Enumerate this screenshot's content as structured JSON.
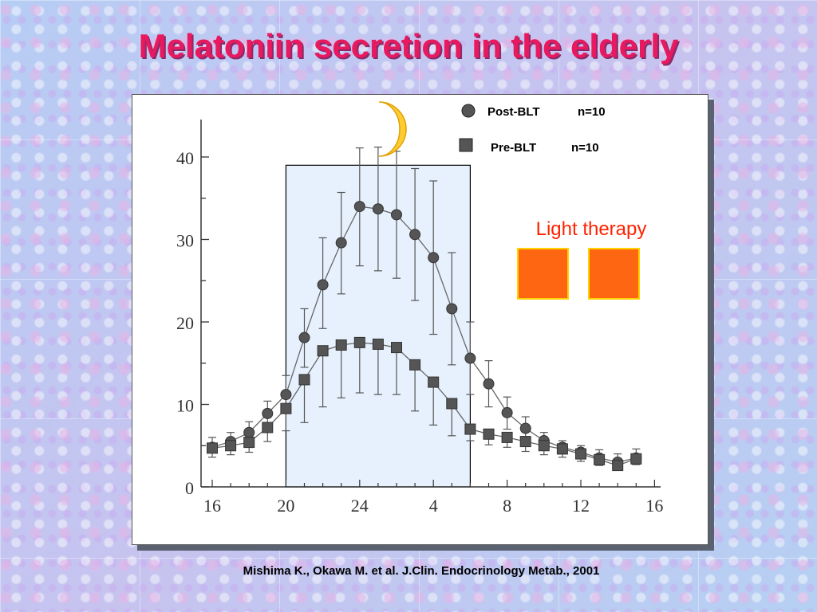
{
  "slide": {
    "title": "Melatoniin secretion in the elderly",
    "citation": "Mishima K., Okawa M. et al. J.Clin. Endocrinology Metab., 2001"
  },
  "chart_data": {
    "type": "line",
    "title": "",
    "xlabel": "",
    "ylabel": "",
    "x_tick_labels": [
      "16",
      "20",
      "24",
      "4",
      "8",
      "12",
      "16"
    ],
    "x_tick_hours": [
      0,
      4,
      8,
      12,
      16,
      20,
      24
    ],
    "y_ticks": [
      0,
      10,
      20,
      30,
      40
    ],
    "ylim": [
      0,
      45
    ],
    "x_range_hours": [
      0,
      24
    ],
    "grid": false,
    "series": [
      {
        "name": "Post-BLT",
        "n_label": "n=10",
        "marker": "circle",
        "x_hours": [
          0,
          1,
          2,
          3,
          4,
          5,
          6,
          7,
          8,
          9,
          10,
          11,
          12,
          13,
          14,
          15,
          16,
          17,
          18,
          19,
          20,
          21,
          22,
          23
        ],
        "values": [
          4.8,
          5.5,
          6.6,
          8.9,
          11.2,
          18.1,
          24.5,
          29.6,
          34.0,
          33.7,
          33.0,
          30.6,
          27.8,
          21.6,
          15.6,
          12.5,
          9.0,
          7.1,
          5.6,
          4.8,
          4.2,
          3.5,
          3.0,
          3.5
        ],
        "error_upper": [
          6.0,
          6.6,
          7.9,
          10.4,
          13.5,
          21.6,
          30.2,
          35.7,
          41.1,
          41.2,
          40.7,
          38.6,
          37.1,
          28.4,
          20.0,
          15.3,
          10.9,
          8.5,
          6.6,
          5.6,
          5.0,
          4.5,
          4.0,
          4.6
        ],
        "error_lower": [
          4.8,
          4.5,
          5.4,
          7.8,
          9.2,
          14.5,
          19.2,
          23.4,
          26.8,
          26.2,
          25.3,
          22.6,
          18.5,
          14.8,
          11.2,
          9.7,
          7.0,
          5.7,
          4.7,
          4.0,
          3.5,
          2.8,
          2.3,
          2.8
        ]
      },
      {
        "name": "Pre-BLT",
        "n_label": "n=10",
        "marker": "square",
        "x_hours": [
          0,
          1,
          2,
          3,
          4,
          5,
          6,
          7,
          8,
          9,
          10,
          11,
          12,
          13,
          14,
          15,
          16,
          17,
          18,
          19,
          20,
          21,
          22,
          23
        ],
        "values": [
          4.7,
          5.0,
          5.4,
          7.2,
          9.5,
          13.0,
          16.5,
          17.2,
          17.5,
          17.3,
          16.9,
          14.8,
          12.7,
          10.1,
          7.0,
          6.4,
          6.0,
          5.5,
          5.0,
          4.6,
          4.0,
          3.3,
          2.6,
          3.4
        ],
        "error_upper": [
          4.7,
          5.0,
          5.4,
          7.2,
          9.5,
          13.0,
          16.5,
          17.2,
          17.5,
          17.3,
          16.9,
          14.8,
          12.7,
          10.1,
          7.0,
          6.4,
          6.0,
          5.5,
          5.0,
          4.6,
          4.0,
          3.3,
          2.6,
          3.4
        ],
        "error_lower": [
          3.6,
          3.9,
          4.2,
          5.5,
          6.8,
          7.8,
          9.7,
          10.8,
          11.4,
          11.2,
          11.2,
          9.2,
          7.5,
          6.2,
          5.6,
          5.1,
          4.8,
          4.3,
          3.9,
          3.6,
          3.1,
          2.6,
          2.1,
          2.7
        ]
      }
    ],
    "shaded_region_hours": [
      4,
      14
    ],
    "legend_position": "top-right",
    "annotations": {
      "light_therapy_label": "Light therapy",
      "moon_icon": "crescent-moon-icon"
    },
    "colors": {
      "title": "#e8195f",
      "light_therapy_text": "#ff2200",
      "light_box_fill": "#ff6611",
      "light_box_border": "#ffd200",
      "shaded_region": "#e6f1fd",
      "marker": "#555555",
      "moon": "#ffcc33"
    }
  }
}
